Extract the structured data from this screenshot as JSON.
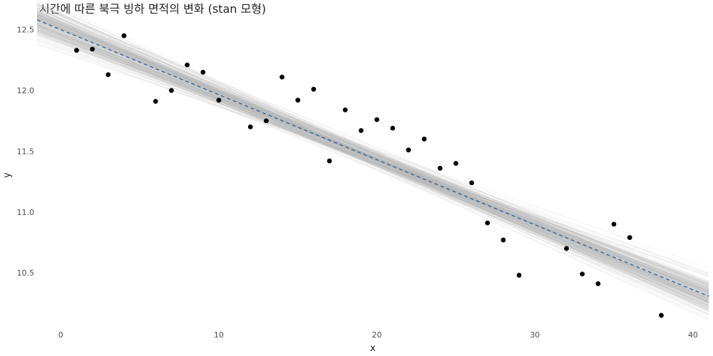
{
  "chart_data": {
    "type": "scatter",
    "title": "시간에 따른 북극 빙하 면적의 변화 (stan 모형)",
    "xlabel": "x",
    "ylabel": "y",
    "xlim": [
      -1.5,
      41
    ],
    "ylim": [
      10.05,
      12.58
    ],
    "x_ticks": [
      0,
      10,
      20,
      30,
      40
    ],
    "y_ticks": [
      10.5,
      11.0,
      11.5,
      12.0,
      12.5
    ],
    "x_tick_labels": [
      "0",
      "10",
      "20",
      "30",
      "40"
    ],
    "y_tick_labels": [
      "10.5",
      "11.0",
      "11.5",
      "12.0",
      "12.5"
    ],
    "grid": false,
    "legend": "none",
    "colors": {
      "points": "#000000",
      "posterior_lines": "#b3b3b3",
      "mean_line": "#3a6ea5"
    },
    "points": [
      {
        "x": 1,
        "y": 12.33
      },
      {
        "x": 2,
        "y": 12.34
      },
      {
        "x": 3,
        "y": 12.13
      },
      {
        "x": 4,
        "y": 12.45
      },
      {
        "x": 6,
        "y": 11.91
      },
      {
        "x": 7,
        "y": 12.0
      },
      {
        "x": 8,
        "y": 12.21
      },
      {
        "x": 9,
        "y": 12.15
      },
      {
        "x": 10,
        "y": 11.92
      },
      {
        "x": 12,
        "y": 11.7
      },
      {
        "x": 13,
        "y": 11.75
      },
      {
        "x": 14,
        "y": 12.11
      },
      {
        "x": 15,
        "y": 11.92
      },
      {
        "x": 16,
        "y": 12.01
      },
      {
        "x": 17,
        "y": 11.42
      },
      {
        "x": 18,
        "y": 11.84
      },
      {
        "x": 19,
        "y": 11.67
      },
      {
        "x": 20,
        "y": 11.76
      },
      {
        "x": 21,
        "y": 11.69
      },
      {
        "x": 22,
        "y": 11.51
      },
      {
        "x": 23,
        "y": 11.6
      },
      {
        "x": 24,
        "y": 11.36
      },
      {
        "x": 25,
        "y": 11.4
      },
      {
        "x": 26,
        "y": 11.24
      },
      {
        "x": 27,
        "y": 10.91
      },
      {
        "x": 28,
        "y": 10.77
      },
      {
        "x": 29,
        "y": 10.48
      },
      {
        "x": 32,
        "y": 10.7
      },
      {
        "x": 33,
        "y": 10.49
      },
      {
        "x": 34,
        "y": 10.41
      },
      {
        "x": 35,
        "y": 10.9
      },
      {
        "x": 36,
        "y": 10.79
      },
      {
        "x": 38,
        "y": 10.15
      }
    ],
    "posterior_fit": {
      "intercept_mean": 12.5,
      "slope_mean": -0.0535,
      "intercept_sd": 0.07,
      "slope_sd": 0.0031,
      "intercept_slope_correlation": -0.85,
      "draws": 220
    },
    "mean_line": {
      "intercept": 12.5,
      "slope": -0.0535
    }
  }
}
